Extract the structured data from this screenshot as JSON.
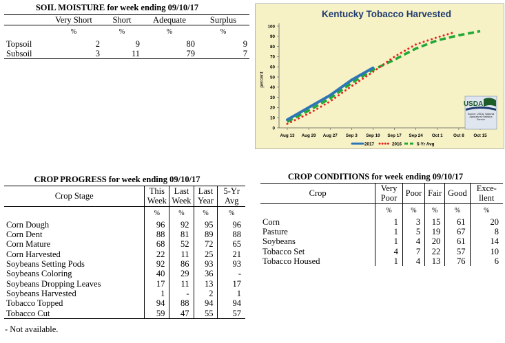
{
  "soil_moisture": {
    "title": "SOIL MOISTURE for week ending 09/10/17",
    "columns": [
      "Very Short",
      "Short",
      "Adequate",
      "Surplus"
    ],
    "units": [
      "%",
      "%",
      "%",
      "%"
    ],
    "rows": [
      {
        "label": "Topsoil",
        "values": [
          "2",
          "9",
          "80",
          "9"
        ]
      },
      {
        "label": "Subsoil",
        "values": [
          "3",
          "11",
          "79",
          "7"
        ]
      }
    ]
  },
  "crop_progress": {
    "title": "CROP PROGRESS for week ending 09/10/17",
    "stage_header": "Crop Stage",
    "columns": [
      [
        "This",
        "Week"
      ],
      [
        "Last",
        "Week"
      ],
      [
        "Last",
        "Year"
      ],
      [
        "5-Yr",
        "Avg"
      ]
    ],
    "units": [
      "%",
      "%",
      "%",
      "%"
    ],
    "rows": [
      {
        "label": "Corn Dough",
        "values": [
          "96",
          "92",
          "95",
          "96"
        ]
      },
      {
        "label": "Corn Dent",
        "values": [
          "88",
          "81",
          "89",
          "88"
        ]
      },
      {
        "label": "Corn Mature",
        "values": [
          "68",
          "52",
          "72",
          "65"
        ]
      },
      {
        "label": "Corn Harvested",
        "values": [
          "22",
          "11",
          "25",
          "21"
        ]
      },
      {
        "label": "Soybeans Setting Pods",
        "values": [
          "92",
          "86",
          "93",
          "93"
        ]
      },
      {
        "label": "Soybeans Coloring",
        "values": [
          "40",
          "29",
          "36",
          "-"
        ]
      },
      {
        "label": "Soybeans Dropping Leaves",
        "values": [
          "17",
          "11",
          "13",
          "17"
        ]
      },
      {
        "label": "Soybeans Harvested",
        "values": [
          "1",
          "-",
          "2",
          "1"
        ]
      },
      {
        "label": "Tobacco Topped",
        "values": [
          "94",
          "88",
          "94",
          "94"
        ]
      },
      {
        "label": "Tobacco Cut",
        "values": [
          "59",
          "47",
          "55",
          "57"
        ]
      }
    ],
    "footnote": "- Not available."
  },
  "crop_conditions": {
    "title": "CROP CONDITIONS for week ending 09/10/17",
    "crop_header": "Crop",
    "columns": [
      [
        "Very",
        "Poor"
      ],
      [
        "Poor"
      ],
      [
        "Fair"
      ],
      [
        "Good"
      ],
      [
        "Exce-",
        "llent"
      ]
    ],
    "units": [
      "%",
      "%",
      "%",
      "%",
      "%"
    ],
    "rows": [
      {
        "label": "Corn",
        "values": [
          "1",
          "3",
          "15",
          "61",
          "20"
        ]
      },
      {
        "label": "Pasture",
        "values": [
          "1",
          "5",
          "19",
          "67",
          "8"
        ]
      },
      {
        "label": "Soybeans",
        "values": [
          "1",
          "4",
          "20",
          "61",
          "14"
        ]
      },
      {
        "label": "Tobacco Set",
        "values": [
          "4",
          "7",
          "22",
          "57",
          "10"
        ]
      },
      {
        "label": "Tobacco Housed",
        "values": [
          "1",
          "4",
          "13",
          "76",
          "6"
        ]
      }
    ]
  },
  "chart_data": {
    "type": "line",
    "title": "Kentucky Tobacco Harvested",
    "ylabel": "percent",
    "xlabel": "",
    "ylim": [
      0,
      100
    ],
    "yticks": [
      0,
      10,
      20,
      30,
      40,
      50,
      60,
      70,
      80,
      90,
      100
    ],
    "categories": [
      "Aug 13",
      "Aug 20",
      "Aug 27",
      "Sep 3",
      "Sep 10",
      "Sep 17",
      "Sep 24",
      "Oct 1",
      "Oct 8",
      "Oct 15"
    ],
    "grid": false,
    "legend_position": "bottom",
    "series": [
      {
        "name": "2017",
        "color": "#2e75b6",
        "style": "solid",
        "points": [
          [
            0,
            8
          ],
          [
            1,
            20
          ],
          [
            2,
            32
          ],
          [
            3,
            47
          ],
          [
            4,
            59
          ]
        ]
      },
      {
        "name": "2016",
        "color": "#e8251c",
        "style": "dotted",
        "points": [
          [
            0,
            4
          ],
          [
            1,
            14
          ],
          [
            2,
            26
          ],
          [
            3,
            41
          ],
          [
            4,
            55
          ],
          [
            5,
            70
          ],
          [
            6,
            82
          ],
          [
            7,
            89
          ],
          [
            7.8,
            94
          ]
        ]
      },
      {
        "name": "5-Yr Avg",
        "color": "#21a835",
        "style": "dashed",
        "points": [
          [
            0,
            6
          ],
          [
            1,
            17
          ],
          [
            2,
            29
          ],
          [
            3,
            44
          ],
          [
            4,
            57
          ],
          [
            5,
            67
          ],
          [
            6,
            78
          ],
          [
            7,
            86
          ],
          [
            8,
            91
          ],
          [
            9,
            95
          ]
        ]
      }
    ],
    "logo": {
      "text": "USDA",
      "caption": "Source: USDA, National Agricultural Statistics Service"
    }
  }
}
